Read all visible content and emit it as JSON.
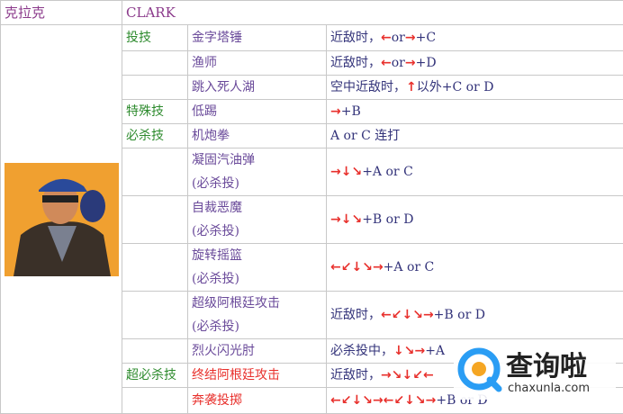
{
  "header": {
    "name_cn": "克拉克",
    "name_en": "CLARK"
  },
  "rows": [
    {
      "category": "投技",
      "name": "金字塔锤",
      "command": [
        "近敌时，",
        "←",
        "or",
        "→",
        "+C"
      ]
    },
    {
      "name": "渔师",
      "command": [
        "近敌时，",
        "←",
        "or",
        "→",
        "+D"
      ]
    },
    {
      "name": "跳入死人湖",
      "command": [
        "空中近敌时，",
        "↑",
        "以外+C or D"
      ]
    },
    {
      "category": "特殊技",
      "name": "低踢",
      "command": [
        "→",
        "+B"
      ]
    },
    {
      "category": "必杀技",
      "name": "机炮拳",
      "command": [
        "A or C 连打"
      ]
    },
    {
      "name": "凝固汽油弹",
      "note": "(必杀投)",
      "command": [
        "→",
        "↓",
        "↘",
        "+A or C"
      ]
    },
    {
      "name": "自裁恶魔",
      "note": "(必杀投)",
      "command": [
        "→",
        "↓",
        "↘",
        "+B or D"
      ]
    },
    {
      "name": "旋转摇篮",
      "note": "(必杀投)",
      "command": [
        "←",
        "↙",
        "↓",
        "↘",
        "→",
        "+A or C"
      ]
    },
    {
      "name": "超级阿根廷攻击",
      "note": "(必杀投)",
      "command": [
        "近敌时，",
        "←",
        "↙",
        "↓",
        "↘",
        "→",
        "+B or D"
      ]
    },
    {
      "name": "烈火闪光肘",
      "command": [
        "必杀投中，",
        "↓",
        "↘",
        "→",
        "+A"
      ]
    },
    {
      "category": "超必杀技",
      "name": "终结阿根廷攻击",
      "name_color": "#e8302c",
      "command": [
        "近敌时，",
        "→",
        "↘",
        "↓",
        "↙",
        "←"
      ]
    },
    {
      "name": "奔袭投掷",
      "name_color": "#e8302c",
      "command": [
        "←",
        "↙",
        "↓",
        "↘",
        "→",
        "←",
        "↙",
        "↓",
        "↘",
        "→",
        "+B or D"
      ]
    }
  ],
  "watermark": {
    "brand": "查询啦",
    "url": "chaxunla.com"
  }
}
